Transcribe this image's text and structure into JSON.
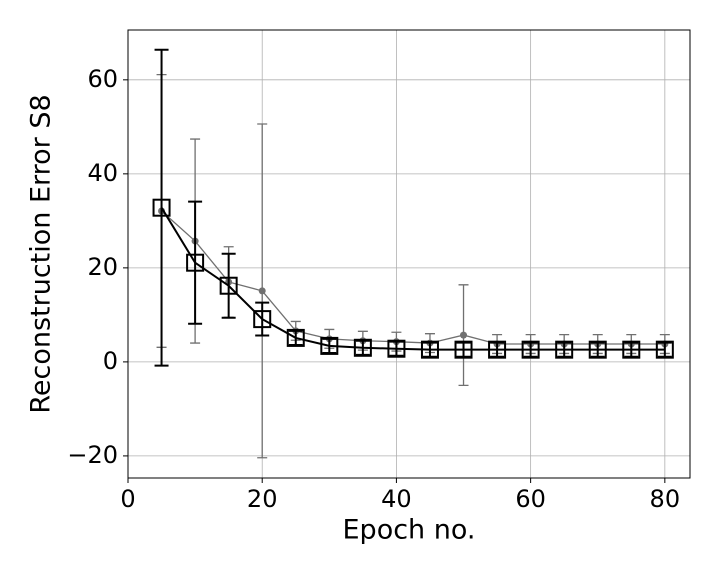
{
  "chart_data": {
    "type": "line",
    "x_label": "Epoch no.",
    "y_label": "Reconstruction Error S8",
    "x": [
      5,
      10,
      15,
      20,
      25,
      30,
      35,
      40,
      45,
      50,
      55,
      60,
      65,
      70,
      75,
      80
    ],
    "series": [
      {
        "color": "#707070",
        "marker": "circle",
        "values": [
          32.1,
          25.7,
          17,
          15.1,
          6.6,
          4.9,
          4.5,
          4.3,
          4,
          5.7,
          3.8,
          3.8,
          3.8,
          3.8,
          3.8,
          3.8
        ],
        "errors": [
          29,
          21.7,
          7.5,
          35.5,
          2,
          2,
          2,
          2,
          2,
          10.7,
          2,
          2,
          2,
          2,
          2,
          2
        ]
      },
      {
        "color": "#000000",
        "marker": "square",
        "values": [
          32.8,
          21.1,
          16.2,
          9.1,
          5.1,
          3.4,
          3,
          2.8,
          2.6,
          2.6,
          2.6,
          2.6,
          2.6,
          2.6,
          2.6,
          2.6
        ],
        "errors": [
          33.6,
          13,
          6.8,
          3.5,
          1.5,
          1.5,
          1.5,
          1.5,
          1.5,
          1.5,
          1.5,
          1.5,
          1.5,
          1.5,
          1.5,
          1.5
        ]
      }
    ],
    "xlim": [
      0,
      83.75
    ],
    "xticks": [
      0,
      20,
      40,
      60,
      80
    ],
    "ylim": [
      -24.7,
      70.6
    ],
    "yticks": [
      {
        "value": -20,
        "label": "−20"
      },
      0,
      20,
      40,
      60
    ],
    "grid": true
  }
}
